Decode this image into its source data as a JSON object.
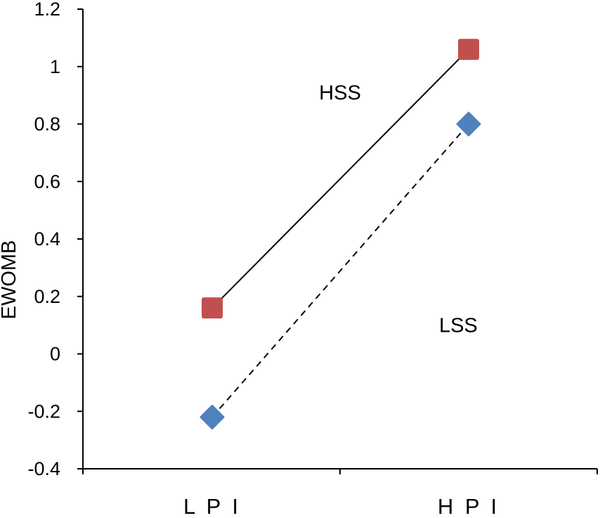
{
  "chart_data": {
    "type": "line",
    "categories": [
      "LPI",
      "HPI"
    ],
    "category_labels": [
      "L P I",
      "H P I"
    ],
    "series": [
      {
        "name": "HSS",
        "values": [
          0.16,
          1.06
        ],
        "color": "#c0504d",
        "marker": "square",
        "line_style": "solid"
      },
      {
        "name": "LSS",
        "values": [
          -0.22,
          0.8
        ],
        "color": "#4f81bd",
        "marker": "diamond",
        "line_style": "dashed"
      }
    ],
    "annotations": [
      {
        "text": "HSS",
        "x_pos": 0.5,
        "y": 0.91
      },
      {
        "text": "LSS",
        "x_pos": 0.73,
        "y": 0.1
      }
    ],
    "ylabel": "EWOMB",
    "xlabel": "",
    "ylim": [
      -0.4,
      1.2
    ],
    "yticks": [
      1.2,
      1,
      0.8,
      0.6,
      0.4,
      0.2,
      0,
      -0.2,
      -0.4
    ],
    "ytick_labels": [
      "1.2",
      "1",
      "0.8",
      "0.6",
      "0.4",
      "0.2",
      "0",
      "-0.2",
      "-0.4"
    ],
    "grid": false,
    "legend": "none"
  }
}
